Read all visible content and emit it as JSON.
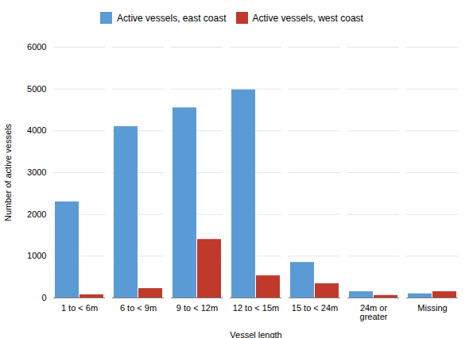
{
  "chart_data": {
    "type": "bar",
    "categories": [
      "1 to < 6m",
      "6 to < 9m",
      "9 to < 12m",
      "12 to < 15m",
      "15 to < 24m",
      "24m or\ngreater",
      "Missing"
    ],
    "series": [
      {
        "name": "Active vessels, east coast",
        "color": "#5b9bd5",
        "values": [
          2300,
          4100,
          4550,
          4980,
          850,
          150,
          100
        ]
      },
      {
        "name": "Active vessels, west coast",
        "color": "#c0392b",
        "values": [
          75,
          225,
          1400,
          530,
          340,
          60,
          150
        ]
      }
    ],
    "xlabel": "Vessel length",
    "ylabel": "Number of active vessels",
    "ylim": [
      0,
      6000
    ],
    "yticks": [
      0,
      1000,
      2000,
      3000,
      4000,
      5000,
      6000
    ],
    "grid": true,
    "legend": "top"
  }
}
